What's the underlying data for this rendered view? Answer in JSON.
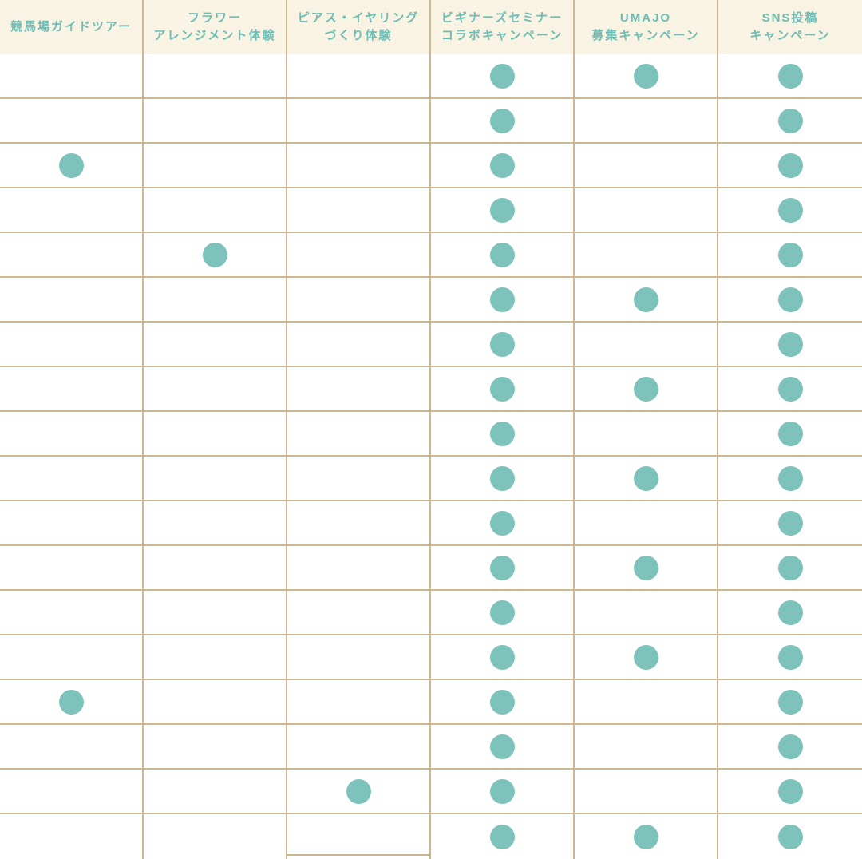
{
  "colors": {
    "page_bg": "#ffffff",
    "header_bg": "#f8f3e3",
    "header_text": "#6fbcb4",
    "grid_border": "#ccb795",
    "dot": "#7dc3bb"
  },
  "table": {
    "mark_symbol": "●",
    "columns": [
      {
        "name": "racecourse-guide-tour",
        "lines": [
          "競馬場ガイドツアー"
        ]
      },
      {
        "name": "flower-arrangement-experience",
        "lines": [
          "フラワー",
          "アレンジメント体験"
        ]
      },
      {
        "name": "pierce-earring-making-experience",
        "lines": [
          "ピアス・イヤリング",
          "づくり体験"
        ]
      },
      {
        "name": "beginners-seminar-collab-campaign",
        "lines": [
          "ビギナーズセミナー",
          "コラボキャンペーン"
        ]
      },
      {
        "name": "umajo-recruitment-campaign",
        "lines": [
          "UMAJO",
          "募集キャンペーン"
        ]
      },
      {
        "name": "sns-post-campaign",
        "lines": [
          "SNS投稿",
          "キャンペーン"
        ]
      }
    ],
    "rows": [
      [
        0,
        0,
        0,
        1,
        1,
        1
      ],
      [
        0,
        0,
        0,
        1,
        0,
        1
      ],
      [
        1,
        0,
        0,
        1,
        0,
        1
      ],
      [
        0,
        0,
        0,
        1,
        0,
        1
      ],
      [
        0,
        1,
        0,
        1,
        0,
        1
      ],
      [
        0,
        0,
        0,
        1,
        1,
        1
      ],
      [
        0,
        0,
        0,
        1,
        0,
        1
      ],
      [
        0,
        0,
        0,
        1,
        1,
        1
      ],
      [
        0,
        0,
        0,
        1,
        0,
        1
      ],
      [
        0,
        0,
        0,
        1,
        1,
        1
      ],
      [
        0,
        0,
        0,
        1,
        0,
        1
      ],
      [
        0,
        0,
        0,
        1,
        1,
        1
      ],
      [
        0,
        0,
        0,
        1,
        0,
        1
      ],
      [
        0,
        0,
        0,
        1,
        1,
        1
      ],
      [
        1,
        0,
        0,
        1,
        0,
        1
      ],
      [
        0,
        0,
        0,
        1,
        0,
        1
      ],
      [
        0,
        0,
        1,
        1,
        0,
        1
      ],
      [
        0,
        0,
        0,
        1,
        1,
        1
      ]
    ]
  },
  "chart_data": {
    "type": "table",
    "title": "",
    "columns": [
      "競馬場ガイドツアー",
      "フラワーアレンジメント体験",
      "ピアス・イヤリングづくり体験",
      "ビギナーズセミナーコラボキャンペーン",
      "UMAJO募集キャンペーン",
      "SNS投稿キャンペーン"
    ],
    "mark": "●",
    "legend_position": "none",
    "grid": true,
    "matrix": [
      [
        0,
        0,
        0,
        1,
        1,
        1
      ],
      [
        0,
        0,
        0,
        1,
        0,
        1
      ],
      [
        1,
        0,
        0,
        1,
        0,
        1
      ],
      [
        0,
        0,
        0,
        1,
        0,
        1
      ],
      [
        0,
        1,
        0,
        1,
        0,
        1
      ],
      [
        0,
        0,
        0,
        1,
        1,
        1
      ],
      [
        0,
        0,
        0,
        1,
        0,
        1
      ],
      [
        0,
        0,
        0,
        1,
        1,
        1
      ],
      [
        0,
        0,
        0,
        1,
        0,
        1
      ],
      [
        0,
        0,
        0,
        1,
        1,
        1
      ],
      [
        0,
        0,
        0,
        1,
        0,
        1
      ],
      [
        0,
        0,
        0,
        1,
        1,
        1
      ],
      [
        0,
        0,
        0,
        1,
        0,
        1
      ],
      [
        0,
        0,
        0,
        1,
        1,
        1
      ],
      [
        1,
        0,
        0,
        1,
        0,
        1
      ],
      [
        0,
        0,
        0,
        1,
        0,
        1
      ],
      [
        0,
        0,
        1,
        1,
        0,
        1
      ],
      [
        0,
        0,
        0,
        1,
        1,
        1
      ]
    ],
    "column_totals": [
      2,
      1,
      1,
      18,
      7,
      18
    ],
    "row_count": 18
  }
}
